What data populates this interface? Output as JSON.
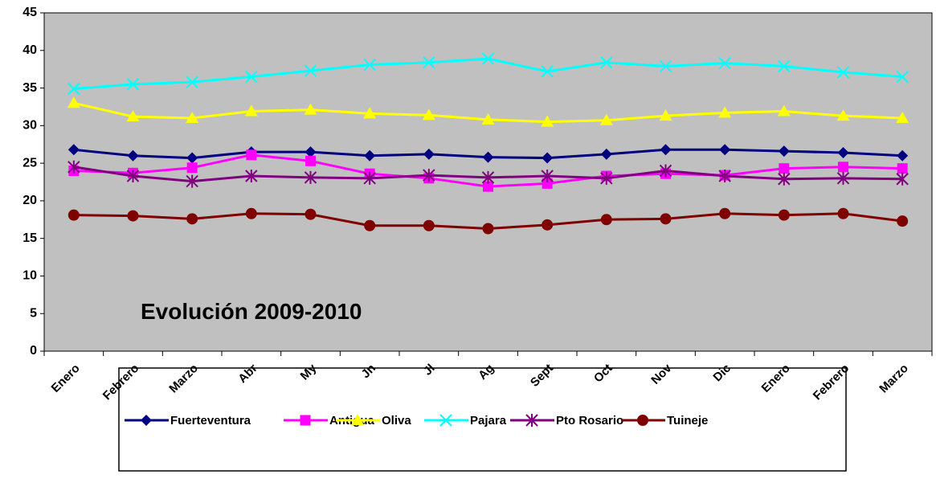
{
  "chart_data": {
    "type": "line",
    "annotation": "Evolución 2009-2010",
    "categories": [
      "Enero",
      "Febrero",
      "Marzo",
      "Abr",
      "My",
      "Jn",
      "Jl",
      "Ag",
      "Sept",
      "Oct",
      "Nov",
      "Dic",
      "Enero",
      "Febrero",
      "Marzo"
    ],
    "ylim": [
      0,
      45
    ],
    "yticks": [
      0,
      5,
      10,
      15,
      20,
      25,
      30,
      35,
      40,
      45
    ],
    "legend": "bottom",
    "series": [
      {
        "name": "Fuerteventura",
        "color": "#000080",
        "marker": "diamond",
        "values": [
          26.8,
          26.0,
          25.7,
          26.5,
          26.5,
          26.0,
          26.2,
          25.8,
          25.7,
          26.2,
          26.8,
          26.8,
          26.6,
          26.4,
          26.0
        ]
      },
      {
        "name": "Antigua",
        "color": "#ff00ff",
        "marker": "square",
        "values": [
          24.0,
          23.7,
          24.4,
          26.1,
          25.3,
          23.6,
          23.0,
          21.9,
          22.3,
          23.3,
          23.6,
          23.4,
          24.3,
          24.5,
          24.3
        ]
      },
      {
        "name": "Oliva",
        "color": "#ffff00",
        "marker": "triangle",
        "values": [
          33.0,
          31.2,
          31.0,
          31.9,
          32.1,
          31.6,
          31.4,
          30.8,
          30.5,
          30.7,
          31.3,
          31.7,
          31.9,
          31.3,
          31.0
        ]
      },
      {
        "name": "Pajara",
        "color": "#00ffff",
        "marker": "x",
        "values": [
          34.9,
          35.5,
          35.8,
          36.5,
          37.3,
          38.1,
          38.4,
          38.9,
          37.2,
          38.4,
          37.9,
          38.3,
          37.9,
          37.1,
          36.5
        ]
      },
      {
        "name": "Pto Rosario",
        "color": "#800080",
        "marker": "asterisk",
        "values": [
          24.5,
          23.3,
          22.6,
          23.3,
          23.1,
          23.0,
          23.4,
          23.1,
          23.3,
          23.0,
          24.0,
          23.3,
          22.9,
          23.0,
          22.9
        ]
      },
      {
        "name": "Tuineje",
        "color": "#800000",
        "marker": "circle",
        "values": [
          18.1,
          18.0,
          17.6,
          18.3,
          18.2,
          16.7,
          16.7,
          16.3,
          16.8,
          17.5,
          17.6,
          18.3,
          18.1,
          18.3,
          17.3
        ]
      }
    ]
  }
}
